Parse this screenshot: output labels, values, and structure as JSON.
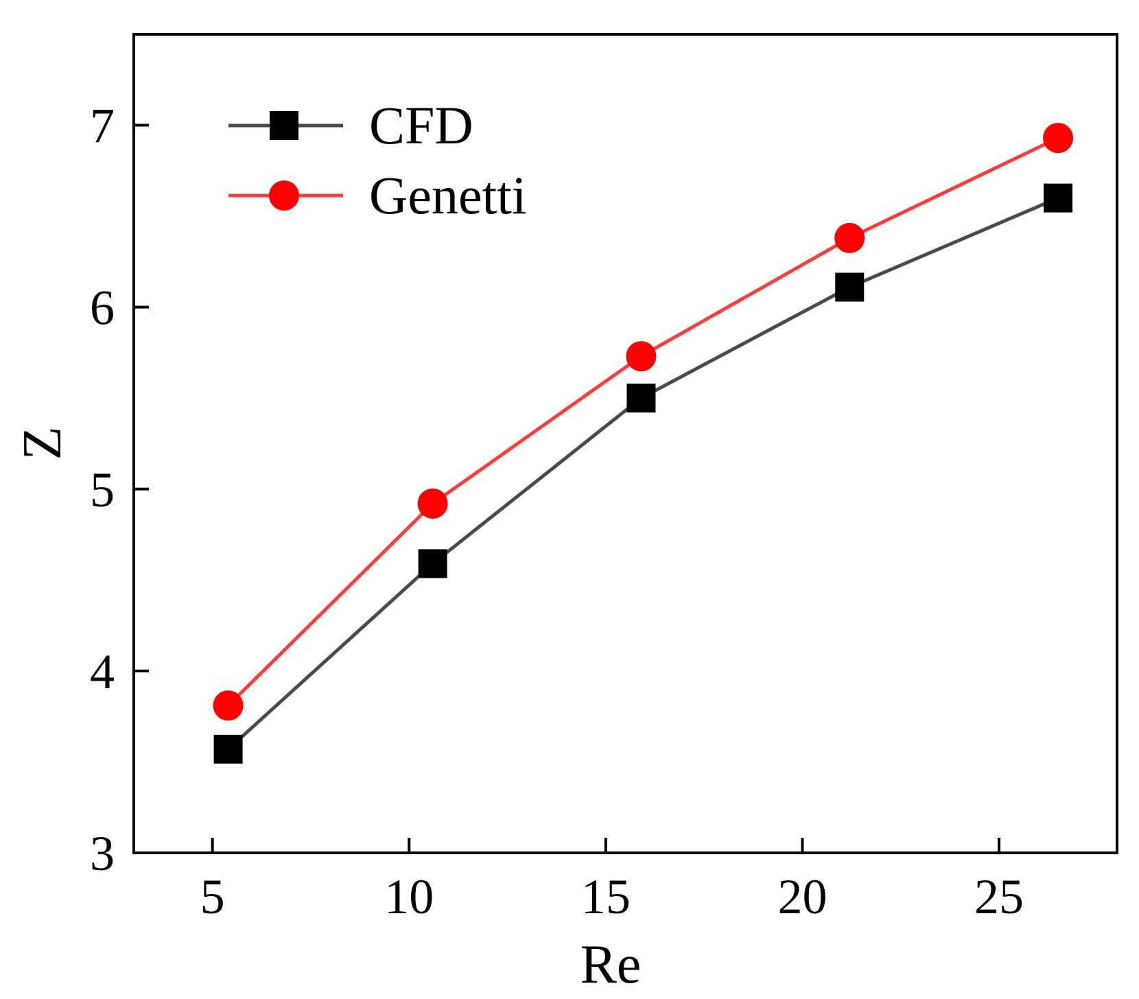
{
  "chart_data": {
    "type": "line",
    "title": "",
    "xlabel": "Re",
    "ylabel": "Z",
    "xlim": [
      3,
      28
    ],
    "ylim": [
      3,
      7.5
    ],
    "xticks": [
      5,
      10,
      15,
      20,
      25
    ],
    "yticks": [
      3,
      4,
      5,
      6,
      7
    ],
    "grid": false,
    "legend_position": "top-left",
    "series": [
      {
        "name": "CFD",
        "color": "#4a4a4a",
        "marker_color": "#000000",
        "marker": "square",
        "x": [
          5.4,
          10.6,
          15.9,
          21.2,
          26.5
        ],
        "y": [
          3.57,
          4.59,
          5.5,
          6.11,
          6.6
        ]
      },
      {
        "name": "Genetti",
        "color": "#ff3b3b",
        "marker_color": "#ff0000",
        "marker": "circle",
        "x": [
          5.4,
          10.6,
          15.9,
          21.2,
          26.5
        ],
        "y": [
          3.81,
          4.92,
          5.73,
          6.38,
          6.93
        ]
      }
    ]
  }
}
